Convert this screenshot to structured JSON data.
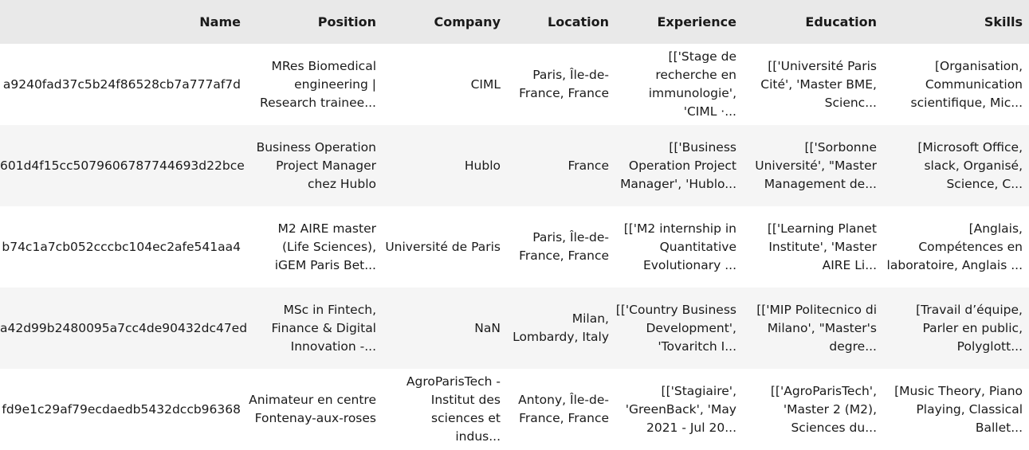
{
  "table": {
    "columns": [
      "Name",
      "Position",
      "Company",
      "Location",
      "Experience",
      "Education",
      "Skills"
    ],
    "rows": [
      {
        "name": "a9240fad37c5b24f86528cb7a777af7d",
        "position": "MRes Biomedical engineering | Research trainee...",
        "company": "CIML",
        "location": "Paris, Île-de-France, France",
        "experience": "[['Stage de recherche en immunologie', 'CIML ·...",
        "education": "[['Université Paris Cité', 'Master BME, Scienc...",
        "skills": "[Organisation, Communication scientifique, Mic..."
      },
      {
        "name": "601d4f15cc5079606787744693d22bce",
        "position": "Business Operation Project Manager chez Hublo",
        "company": "Hublo",
        "location": "France",
        "experience": "[['Business Operation Project Manager', 'Hublo...",
        "education": "[['Sorbonne Université', \"Master Management de...",
        "skills": "[Microsoft Office, slack, Organisé, Science, C..."
      },
      {
        "name": "b74c1a7cb052cccbc104ec2afe541aa4",
        "position": "M2 AIRE master (Life Sciences), iGEM Paris Bet...",
        "company": "Université de Paris",
        "location": "Paris, Île-de-France, France",
        "experience": "[['M2 internship in Quantitative Evolutionary ...",
        "education": "[['Learning Planet Institute', 'Master AIRE Li...",
        "skills": "[Anglais, Compétences en laboratoire, Anglais ..."
      },
      {
        "name": "a42d99b2480095a7cc4de90432dc47ed",
        "position": "MSc in Fintech, Finance & Digital Innovation -...",
        "company": "NaN",
        "location": "Milan, Lombardy, Italy",
        "experience": "[['Country Business Development', 'Tovaritch I...",
        "education": "[['MIP Politecnico di Milano', \"Master's degre...",
        "skills": "[Travail d’équipe, Parler en public, Polyglott..."
      },
      {
        "name": "fd9e1c29af79ecdaedb5432dccb96368",
        "position": "Animateur en centre Fontenay-aux-roses",
        "company": "AgroParisTech - Institut des sciences et indus...",
        "location": "Antony, Île-de-France, France",
        "experience": "[['Stagiaire', 'GreenBack', 'May 2021 - Jul 20...",
        "education": "[['AgroParisTech', 'Master 2 (M2), Sciences du...",
        "skills": "[Music Theory, Piano Playing, Classical Ballet..."
      }
    ]
  }
}
